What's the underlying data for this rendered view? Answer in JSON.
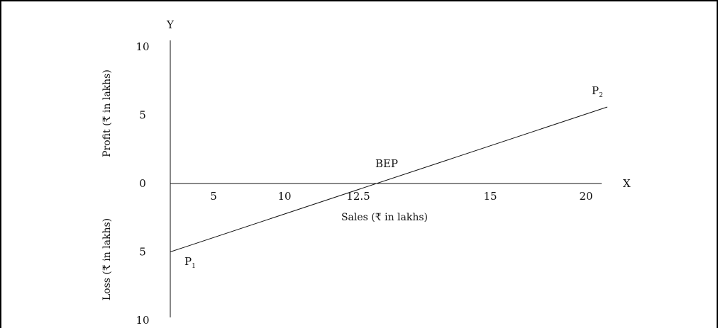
{
  "chart_data": {
    "type": "line",
    "title": "",
    "x_axis": {
      "letter": "X",
      "label": "Sales (₹ in lakhs)",
      "ticks": [
        {
          "value": 5,
          "label": "5"
        },
        {
          "value": 10,
          "label": "10"
        },
        {
          "value": 12.5,
          "label": "12.5"
        },
        {
          "value": 15,
          "label": "15"
        },
        {
          "value": 20,
          "label": "20"
        }
      ]
    },
    "y_axis": {
      "letter": "Y",
      "label_upper": "Profit (₹ in lakhs)",
      "label_lower": "Loss (₹ in lakhs)",
      "ticks": [
        {
          "value": 10,
          "label": "10"
        },
        {
          "value": 5,
          "label": "5"
        },
        {
          "value": 0,
          "label": "0"
        },
        {
          "value": -5,
          "label": "5"
        },
        {
          "value": -10,
          "label": "10"
        }
      ]
    },
    "series": [
      {
        "points": [
          {
            "x": 0,
            "y": -5,
            "label": "P1",
            "label_main": "P",
            "label_sub": "1"
          },
          {
            "x": 12.5,
            "y": 0,
            "label": "BEP"
          },
          {
            "x": 20,
            "y": 5,
            "label": "P2",
            "label_main": "P",
            "label_sub": "2"
          }
        ]
      }
    ]
  }
}
